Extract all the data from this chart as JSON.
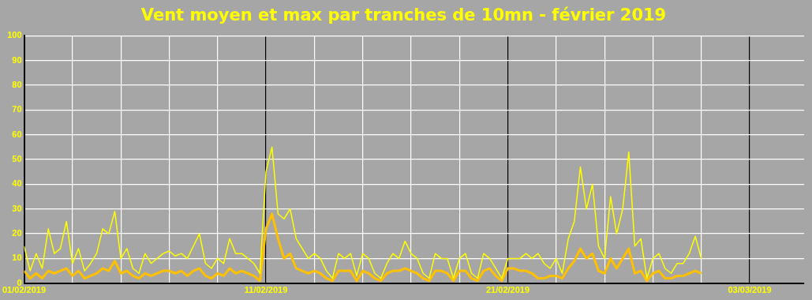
{
  "chart_data": {
    "type": "line",
    "title": "Vent moyen et max par tranches de 10mn - février 2019",
    "x": [
      "2019-02-01T00:00",
      "2019-02-01T06:00",
      "2019-02-01T12:00",
      "2019-02-01T18:00",
      "2019-02-02T00:00",
      "2019-02-02T06:00",
      "2019-02-02T12:00",
      "2019-02-02T18:00",
      "2019-02-03T00:00",
      "2019-02-03T06:00",
      "2019-02-03T12:00",
      "2019-02-03T18:00",
      "2019-02-04T00:00",
      "2019-02-04T06:00",
      "2019-02-04T12:00",
      "2019-02-04T18:00",
      "2019-02-05T00:00",
      "2019-02-05T06:00",
      "2019-02-05T12:00",
      "2019-02-05T18:00",
      "2019-02-06T00:00",
      "2019-02-06T06:00",
      "2019-02-06T12:00",
      "2019-02-06T18:00",
      "2019-02-07T00:00",
      "2019-02-07T06:00",
      "2019-02-07T12:00",
      "2019-02-07T18:00",
      "2019-02-08T00:00",
      "2019-02-08T06:00",
      "2019-02-08T12:00",
      "2019-02-08T18:00",
      "2019-02-09T00:00",
      "2019-02-09T06:00",
      "2019-02-09T12:00",
      "2019-02-09T18:00",
      "2019-02-10T00:00",
      "2019-02-10T06:00",
      "2019-02-10T12:00",
      "2019-02-10T18:00",
      "2019-02-11T00:00",
      "2019-02-11T06:00",
      "2019-02-11T12:00",
      "2019-02-11T18:00",
      "2019-02-12T00:00",
      "2019-02-12T06:00",
      "2019-02-12T12:00",
      "2019-02-12T18:00",
      "2019-02-13T00:00",
      "2019-02-13T06:00",
      "2019-02-13T12:00",
      "2019-02-13T18:00",
      "2019-02-14T00:00",
      "2019-02-14T06:00",
      "2019-02-14T12:00",
      "2019-02-14T18:00",
      "2019-02-15T00:00",
      "2019-02-15T06:00",
      "2019-02-15T12:00",
      "2019-02-15T18:00",
      "2019-02-16T00:00",
      "2019-02-16T06:00",
      "2019-02-16T12:00",
      "2019-02-16T18:00",
      "2019-02-17T00:00",
      "2019-02-17T06:00",
      "2019-02-17T12:00",
      "2019-02-17T18:00",
      "2019-02-18T00:00",
      "2019-02-18T06:00",
      "2019-02-18T12:00",
      "2019-02-18T18:00",
      "2019-02-19T00:00",
      "2019-02-19T06:00",
      "2019-02-19T12:00",
      "2019-02-19T18:00",
      "2019-02-20T00:00",
      "2019-02-20T06:00",
      "2019-02-20T12:00",
      "2019-02-20T18:00",
      "2019-02-21T00:00",
      "2019-02-21T06:00",
      "2019-02-21T12:00",
      "2019-02-21T18:00",
      "2019-02-22T00:00",
      "2019-02-22T06:00",
      "2019-02-22T12:00",
      "2019-02-22T18:00",
      "2019-02-23T00:00",
      "2019-02-23T06:00",
      "2019-02-23T12:00",
      "2019-02-23T18:00",
      "2019-02-24T00:00",
      "2019-02-24T06:00",
      "2019-02-24T12:00",
      "2019-02-24T18:00",
      "2019-02-25T00:00",
      "2019-02-25T06:00",
      "2019-02-25T12:00",
      "2019-02-25T18:00",
      "2019-02-26T00:00",
      "2019-02-26T06:00",
      "2019-02-26T12:00",
      "2019-02-26T18:00",
      "2019-02-27T00:00",
      "2019-02-27T06:00",
      "2019-02-27T12:00",
      "2019-02-27T18:00",
      "2019-02-28T00:00",
      "2019-02-28T06:00",
      "2019-02-28T12:00",
      "2019-02-28T18:00",
      "2019-03-01T00:00"
    ],
    "series": [
      {
        "color": "#ffff00",
        "values": [
          15,
          5,
          12,
          6,
          22,
          12,
          14,
          25,
          8,
          14,
          5,
          8,
          12,
          22,
          20,
          29,
          10,
          14,
          6,
          4,
          12,
          8,
          10,
          12,
          13,
          11,
          12,
          10,
          15,
          20,
          8,
          6,
          10,
          8,
          18,
          12,
          12,
          10,
          8,
          4,
          45,
          55,
          28,
          26,
          30,
          18,
          14,
          10,
          12,
          10,
          5,
          2,
          12,
          10,
          12,
          3,
          12,
          10,
          4,
          2,
          8,
          12,
          10,
          17,
          12,
          10,
          4,
          2,
          12,
          10,
          10,
          2,
          10,
          12,
          4,
          2,
          12,
          10,
          6,
          2,
          10,
          10,
          10,
          12,
          10,
          12,
          8,
          6,
          10,
          4,
          18,
          25,
          47,
          30,
          40,
          15,
          10,
          35,
          20,
          30,
          53,
          15,
          18,
          2,
          10,
          12,
          6,
          4,
          8,
          8,
          12,
          19,
          10
        ]
      },
      {
        "color": "#ffc000",
        "values": [
          5,
          2,
          4,
          2,
          5,
          4,
          5,
          6,
          3,
          5,
          2,
          3,
          4,
          6,
          5,
          9,
          4,
          5,
          3,
          2,
          4,
          3,
          4,
          5,
          5,
          4,
          5,
          3,
          5,
          6,
          3,
          2,
          4,
          3,
          6,
          4,
          5,
          4,
          3,
          1,
          22,
          28,
          18,
          10,
          12,
          6,
          5,
          4,
          5,
          4,
          2,
          1,
          5,
          5,
          5,
          1,
          5,
          4,
          2,
          1,
          4,
          5,
          5,
          6,
          5,
          4,
          2,
          1,
          5,
          5,
          4,
          1,
          5,
          5,
          2,
          1,
          5,
          6,
          3,
          1,
          6,
          6,
          5,
          5,
          4,
          2,
          2,
          3,
          3,
          2,
          6,
          9,
          14,
          10,
          12,
          5,
          4,
          10,
          6,
          10,
          14,
          4,
          5,
          1,
          4,
          5,
          2,
          2,
          3,
          3,
          4,
          5,
          4
        ]
      }
    ],
    "xlim": [
      "2019-02-01",
      "2019-03-05T06:00"
    ],
    "xticks": [
      {
        "value": "2019-02-01",
        "label": "01/02/2019"
      },
      {
        "value": "2019-02-03",
        "label": null
      },
      {
        "value": "2019-02-05",
        "label": null
      },
      {
        "value": "2019-02-07",
        "label": null
      },
      {
        "value": "2019-02-09",
        "label": null
      },
      {
        "value": "2019-02-11",
        "label": "11/02/2019"
      },
      {
        "value": "2019-02-13",
        "label": null
      },
      {
        "value": "2019-02-15",
        "label": null
      },
      {
        "value": "2019-02-17",
        "label": null
      },
      {
        "value": "2019-02-19",
        "label": null
      },
      {
        "value": "2019-02-21",
        "label": "21/02/2019"
      },
      {
        "value": "2019-02-23",
        "label": null
      },
      {
        "value": "2019-02-25",
        "label": null
      },
      {
        "value": "2019-02-27",
        "label": null
      },
      {
        "value": "2019-03-01",
        "label": null
      },
      {
        "value": "2019-03-03",
        "label": "03/03/2019"
      }
    ],
    "ylim": [
      0,
      100
    ],
    "yticks": [
      0,
      10,
      20,
      30,
      40,
      50,
      60,
      70,
      80,
      90,
      100
    ],
    "grid": true
  }
}
